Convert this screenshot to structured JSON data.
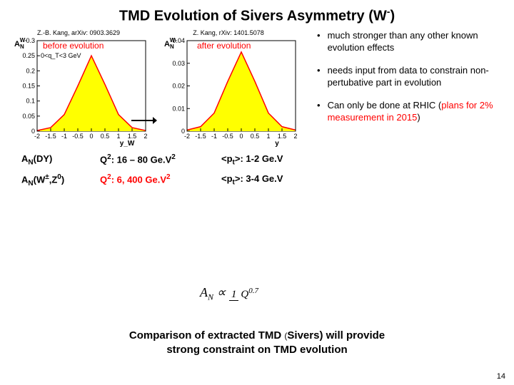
{
  "title_main": "TMD Evolution of Sivers Asymmetry (W",
  "title_sup": "-",
  "title_end": ")",
  "ref_left": "Z.-B. Kang, arXiv: 0903.3629",
  "ref_right": "Z. Kang, rXiv: 1401.5078",
  "label_before": "before evolution",
  "label_after": "after evolution",
  "chart_left": {
    "ylabel": "A_N",
    "ylabel_sup": "W-",
    "xlabel": "y_W",
    "xlabel_sub": "W",
    "inset": "0<q_T<3 GeV",
    "ylim": [
      0,
      0.3
    ],
    "yticks": [
      0,
      0.05,
      0.1,
      0.15,
      0.2,
      0.25,
      0.3
    ],
    "xlim": [
      -2,
      2
    ],
    "xticks": [
      -2,
      -1.5,
      -1,
      -0.5,
      0,
      0.5,
      1,
      1.5,
      2
    ],
    "curve": [
      {
        "x": -2.0,
        "y": 0.002
      },
      {
        "x": -1.5,
        "y": 0.012
      },
      {
        "x": -1.0,
        "y": 0.055
      },
      {
        "x": -0.5,
        "y": 0.15
      },
      {
        "x": 0.0,
        "y": 0.25
      },
      {
        "x": 0.5,
        "y": 0.155
      },
      {
        "x": 1.0,
        "y": 0.055
      },
      {
        "x": 1.5,
        "y": 0.012
      },
      {
        "x": 2.0,
        "y": 0.002
      }
    ],
    "curve_color": "#ff0000",
    "fill_color": "#ffff00",
    "line_width": 1.5,
    "background": "#ffffff"
  },
  "chart_right": {
    "ylabel": "A_N",
    "ylabel_sup": "W-",
    "xlabel": "y",
    "ylim": [
      0,
      0.04
    ],
    "yticks": [
      0,
      0.01,
      0.02,
      0.03,
      0.04
    ],
    "xlim": [
      -2,
      2
    ],
    "xticks": [
      -2,
      -1.5,
      -1,
      -0.5,
      0,
      0.5,
      1,
      1.5,
      2
    ],
    "curve": [
      {
        "x": -2.0,
        "y": 0.0005
      },
      {
        "x": -1.5,
        "y": 0.002
      },
      {
        "x": -1.0,
        "y": 0.008
      },
      {
        "x": -0.5,
        "y": 0.022
      },
      {
        "x": 0.0,
        "y": 0.035
      },
      {
        "x": 0.5,
        "y": 0.022
      },
      {
        "x": 1.0,
        "y": 0.008
      },
      {
        "x": 1.5,
        "y": 0.002
      },
      {
        "x": 2.0,
        "y": 0.0005
      }
    ],
    "curve_color": "#ff0000",
    "fill_color": "#ffff00",
    "line_width": 1.5,
    "background": "#ffffff"
  },
  "bullets": [
    {
      "text": "much stronger than any other known evolution effects",
      "red": false
    },
    {
      "text": "needs input from data to constrain non-pertubative part in evolution",
      "red": false
    },
    {
      "text_a": "Can only be done at RHIC (",
      "text_b": "plans for 2% measurement in 2015",
      "text_c": ")",
      "red": true
    }
  ],
  "table": {
    "row1": {
      "c1_a": "A",
      "c1_b": "N",
      "c1_c": "(DY)",
      "c2_a": "Q",
      "c2_b": "2",
      "c2_c": ": 16 – 80 Ge.V",
      "c2_d": "2",
      "c3_a": "<p",
      "c3_b": "t",
      "c3_c": ">: 1-2 Ge.V"
    },
    "row2": {
      "c1_a": "A",
      "c1_b": "N",
      "c1_c": "(W",
      "c1_d": "±",
      "c1_e": ",Z",
      "c1_f": "0",
      "c1_g": ")",
      "c2_a": "Q",
      "c2_b": "2",
      "c2_c": ": 6, 400 Ge.V",
      "c2_d": "2",
      "c3_a": "<p",
      "c3_b": "t",
      "c3_c": ">: 3-4 Ge.V"
    }
  },
  "formula": {
    "lhs": "A",
    "lhs_sub": "N",
    "prop": " ∝ ",
    "num": "1",
    "den_base": "Q",
    "den_exp": "0.7"
  },
  "conclusion_l1_a": "Comparison of extracted TMD ",
  "conclusion_stray": "(",
  "conclusion_l1_b": "Sivers) will provide",
  "conclusion_l2": "strong constraint on TMD evolution",
  "page_number": "14"
}
